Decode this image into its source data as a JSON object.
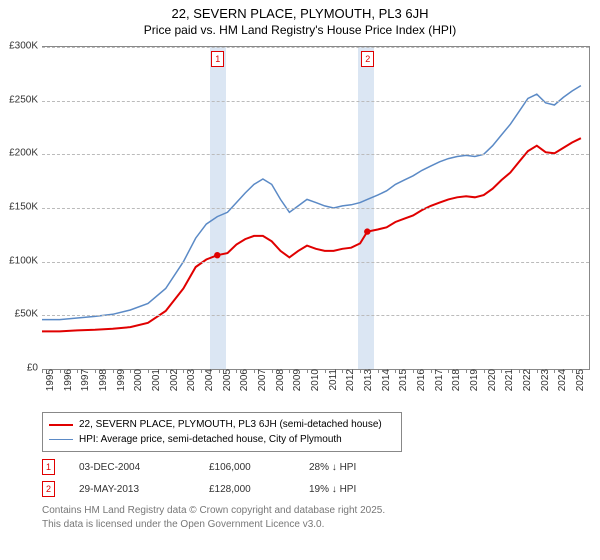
{
  "title": "22, SEVERN PLACE, PLYMOUTH, PL3 6JH",
  "subtitle": "Price paid vs. HM Land Registry's House Price Index (HPI)",
  "chart": {
    "type": "line",
    "background_color": "#ffffff",
    "grid_color": "#bbbbbb",
    "border_color": "#888888",
    "x": {
      "min": 1995,
      "max": 2025.9,
      "ticks": [
        1995,
        1996,
        1997,
        1998,
        1999,
        2000,
        2001,
        2002,
        2003,
        2004,
        2005,
        2006,
        2007,
        2008,
        2009,
        2010,
        2011,
        2012,
        2013,
        2014,
        2015,
        2016,
        2017,
        2018,
        2019,
        2020,
        2021,
        2022,
        2023,
        2024,
        2025
      ],
      "label_fontsize": 10
    },
    "y": {
      "min": 0,
      "max": 300000,
      "tick_step": 50000,
      "tick_labels": [
        "£0",
        "£50K",
        "£100K",
        "£150K",
        "£200K",
        "£250K",
        "£300K"
      ],
      "label_fontsize": 10
    },
    "highlight_color": "#dbe6f3",
    "highlight_border": "#9ab3d1",
    "highlight_bands": [
      {
        "from": 2004.5,
        "to": 2005.4
      },
      {
        "from": 2012.9,
        "to": 2013.8
      }
    ],
    "markers": [
      {
        "label": "1",
        "x": 2004.92,
        "color": "#e00000"
      },
      {
        "label": "2",
        "x": 2013.41,
        "color": "#e00000"
      }
    ],
    "series": [
      {
        "name": "price_paid",
        "label": "22, SEVERN PLACE, PLYMOUTH, PL3 6JH (semi-detached house)",
        "color": "#e00000",
        "width": 2,
        "points": [
          [
            1995.0,
            35000
          ],
          [
            1996.0,
            35000
          ],
          [
            1997.0,
            36000
          ],
          [
            1998.0,
            36500
          ],
          [
            1999.0,
            37500
          ],
          [
            2000.0,
            39000
          ],
          [
            2001.0,
            43000
          ],
          [
            2002.0,
            54000
          ],
          [
            2003.0,
            75000
          ],
          [
            2003.7,
            95000
          ],
          [
            2004.3,
            102000
          ],
          [
            2004.92,
            106000
          ],
          [
            2005.5,
            108000
          ],
          [
            2006.0,
            116000
          ],
          [
            2006.5,
            121000
          ],
          [
            2007.0,
            124000
          ],
          [
            2007.5,
            124000
          ],
          [
            2008.0,
            119000
          ],
          [
            2008.5,
            110000
          ],
          [
            2009.0,
            104000
          ],
          [
            2009.5,
            110000
          ],
          [
            2010.0,
            115000
          ],
          [
            2010.5,
            112000
          ],
          [
            2011.0,
            110000
          ],
          [
            2011.5,
            110000
          ],
          [
            2012.0,
            112000
          ],
          [
            2012.5,
            113000
          ],
          [
            2013.0,
            117000
          ],
          [
            2013.41,
            128000
          ],
          [
            2014.0,
            130000
          ],
          [
            2014.5,
            132000
          ],
          [
            2015.0,
            137000
          ],
          [
            2015.5,
            140000
          ],
          [
            2016.0,
            143000
          ],
          [
            2016.5,
            148000
          ],
          [
            2017.0,
            152000
          ],
          [
            2017.5,
            155000
          ],
          [
            2018.0,
            158000
          ],
          [
            2018.5,
            160000
          ],
          [
            2019.0,
            161000
          ],
          [
            2019.5,
            160000
          ],
          [
            2020.0,
            162000
          ],
          [
            2020.5,
            168000
          ],
          [
            2021.0,
            176000
          ],
          [
            2021.5,
            183000
          ],
          [
            2022.0,
            193000
          ],
          [
            2022.5,
            203000
          ],
          [
            2023.0,
            208000
          ],
          [
            2023.5,
            202000
          ],
          [
            2024.0,
            201000
          ],
          [
            2024.5,
            206000
          ],
          [
            2025.0,
            211000
          ],
          [
            2025.5,
            215000
          ]
        ],
        "sale_dots": [
          [
            2004.92,
            106000
          ],
          [
            2013.41,
            128000
          ]
        ]
      },
      {
        "name": "hpi",
        "label": "HPI: Average price, semi-detached house, City of Plymouth",
        "color": "#5b8ac6",
        "width": 1.5,
        "points": [
          [
            1995.0,
            46000
          ],
          [
            1996.0,
            46000
          ],
          [
            1997.0,
            47500
          ],
          [
            1998.0,
            49000
          ],
          [
            1999.0,
            51000
          ],
          [
            2000.0,
            55000
          ],
          [
            2001.0,
            61000
          ],
          [
            2002.0,
            75000
          ],
          [
            2003.0,
            100000
          ],
          [
            2003.7,
            122000
          ],
          [
            2004.3,
            135000
          ],
          [
            2004.92,
            142000
          ],
          [
            2005.5,
            146000
          ],
          [
            2006.0,
            155000
          ],
          [
            2006.5,
            164000
          ],
          [
            2007.0,
            172000
          ],
          [
            2007.5,
            177000
          ],
          [
            2008.0,
            172000
          ],
          [
            2008.5,
            158000
          ],
          [
            2009.0,
            146000
          ],
          [
            2009.5,
            152000
          ],
          [
            2010.0,
            158000
          ],
          [
            2010.5,
            155000
          ],
          [
            2011.0,
            152000
          ],
          [
            2011.5,
            150000
          ],
          [
            2012.0,
            152000
          ],
          [
            2012.5,
            153000
          ],
          [
            2013.0,
            155000
          ],
          [
            2013.41,
            158000
          ],
          [
            2014.0,
            162000
          ],
          [
            2014.5,
            166000
          ],
          [
            2015.0,
            172000
          ],
          [
            2015.5,
            176000
          ],
          [
            2016.0,
            180000
          ],
          [
            2016.5,
            185000
          ],
          [
            2017.0,
            189000
          ],
          [
            2017.5,
            193000
          ],
          [
            2018.0,
            196000
          ],
          [
            2018.5,
            198000
          ],
          [
            2019.0,
            199000
          ],
          [
            2019.5,
            198000
          ],
          [
            2020.0,
            200000
          ],
          [
            2020.5,
            208000
          ],
          [
            2021.0,
            218000
          ],
          [
            2021.5,
            228000
          ],
          [
            2022.0,
            240000
          ],
          [
            2022.5,
            252000
          ],
          [
            2023.0,
            256000
          ],
          [
            2023.5,
            248000
          ],
          [
            2024.0,
            246000
          ],
          [
            2024.5,
            253000
          ],
          [
            2025.0,
            259000
          ],
          [
            2025.5,
            264000
          ]
        ]
      }
    ]
  },
  "legend": {
    "border_color": "#888888",
    "fontsize": 10
  },
  "transactions": [
    {
      "idx": "1",
      "date": "03-DEC-2004",
      "price": "£106,000",
      "diff": "28% ↓ HPI",
      "marker_color": "#e00000"
    },
    {
      "idx": "2",
      "date": "29-MAY-2013",
      "price": "£128,000",
      "diff": "19% ↓ HPI",
      "marker_color": "#e00000"
    }
  ],
  "footer": {
    "line1": "Contains HM Land Registry data © Crown copyright and database right 2025.",
    "line2": "This data is licensed under the Open Government Licence v3.0.",
    "color": "#777777",
    "fontsize": 10
  },
  "column_widths": {
    "date": 130,
    "price": 100,
    "diff": 100
  }
}
